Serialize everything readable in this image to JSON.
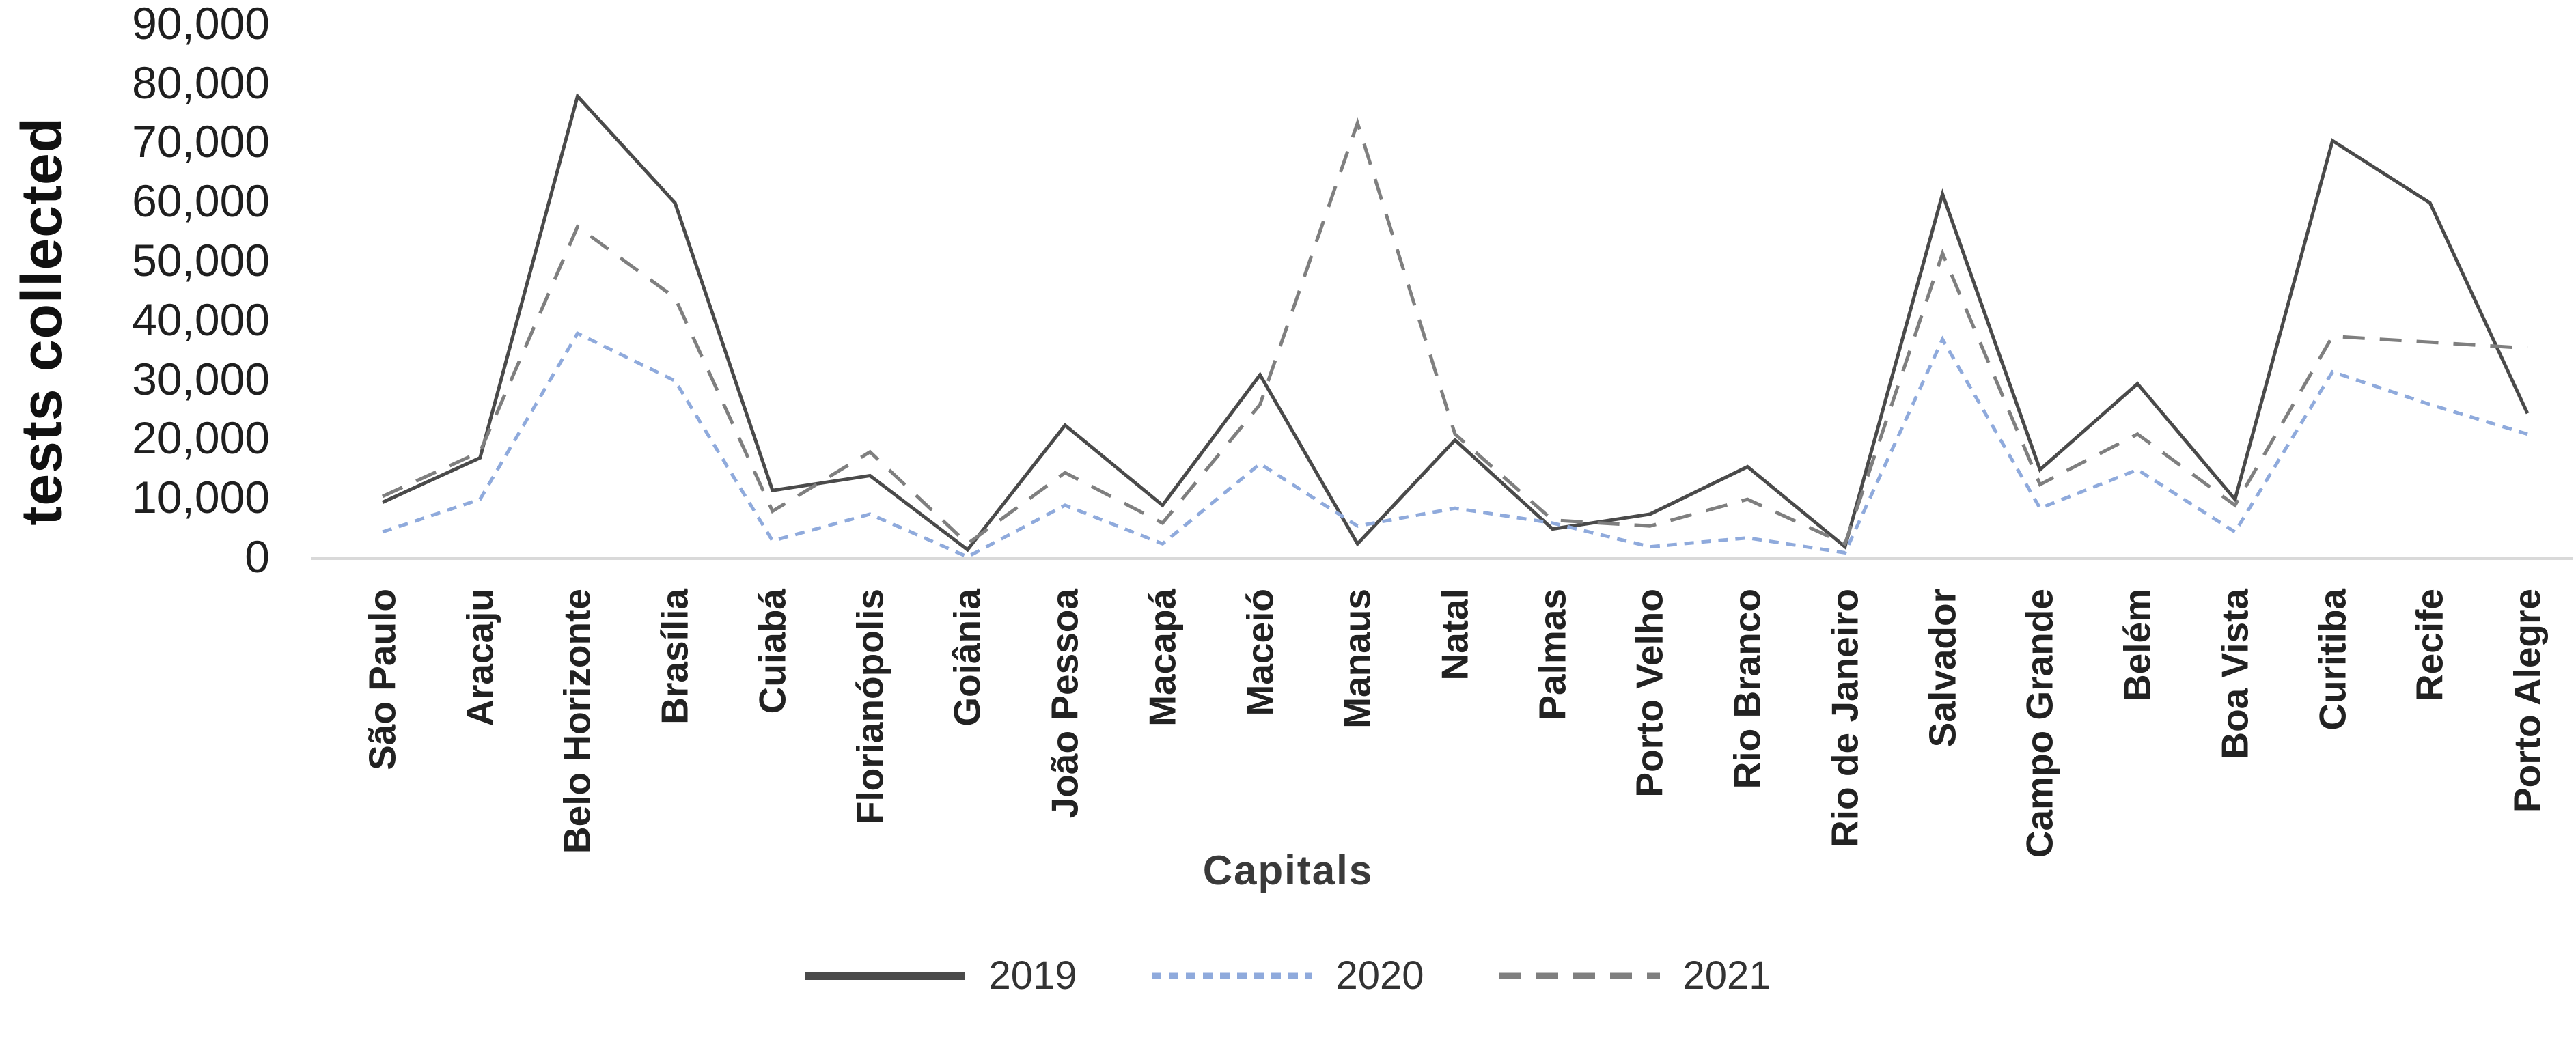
{
  "chart_data": {
    "type": "line",
    "title": "",
    "ylabel": "tests collected",
    "xlabel": "Capitals",
    "ylim": [
      0,
      90000
    ],
    "ytick_step": 10000,
    "ytick_labels": [
      "0",
      "10,000",
      "20,000",
      "30,000",
      "40,000",
      "50,000",
      "60,000",
      "70,000",
      "80,000",
      "90,000"
    ],
    "grid": false,
    "legend_position": "bottom",
    "categories": [
      "São Paulo",
      "Aracaju",
      "Belo Horizonte",
      "Brasília",
      "Cuiabá",
      "Florianópolis",
      "Goiânia",
      "João Pessoa",
      "Macapá",
      "Maceió",
      "Manaus",
      "Natal",
      "Palmas",
      "Porto Velho",
      "Rio Branco",
      "Rio de Janeiro",
      "Salvador",
      "Campo Grande",
      "Belém",
      "Boa Vista",
      "Curitiba",
      "Recife",
      "Porto Alegre"
    ],
    "series": [
      {
        "name": "2019",
        "style": "solid",
        "color": "#4a4a4a",
        "values": [
          9500,
          17000,
          78000,
          60000,
          11500,
          14000,
          1500,
          22500,
          9000,
          31000,
          2500,
          20000,
          5000,
          7500,
          15500,
          2000,
          61500,
          15000,
          29500,
          10000,
          70500,
          60000,
          24500
        ]
      },
      {
        "name": "2020",
        "style": "dashed-fine",
        "color": "#8faadc",
        "values": [
          4500,
          10000,
          38000,
          30000,
          3000,
          7500,
          300,
          9000,
          2500,
          16000,
          5500,
          8500,
          6000,
          2000,
          3500,
          1000,
          37000,
          8500,
          15000,
          4500,
          31500,
          26000,
          21000
        ]
      },
      {
        "name": "2021",
        "style": "dashed",
        "color": "#7f7f7f",
        "values": [
          10500,
          18000,
          56000,
          44000,
          8000,
          18000,
          2500,
          14500,
          6000,
          26000,
          73500,
          21000,
          6500,
          5500,
          10000,
          2500,
          51500,
          12500,
          21000,
          9000,
          37500,
          36500,
          35500
        ]
      }
    ]
  }
}
